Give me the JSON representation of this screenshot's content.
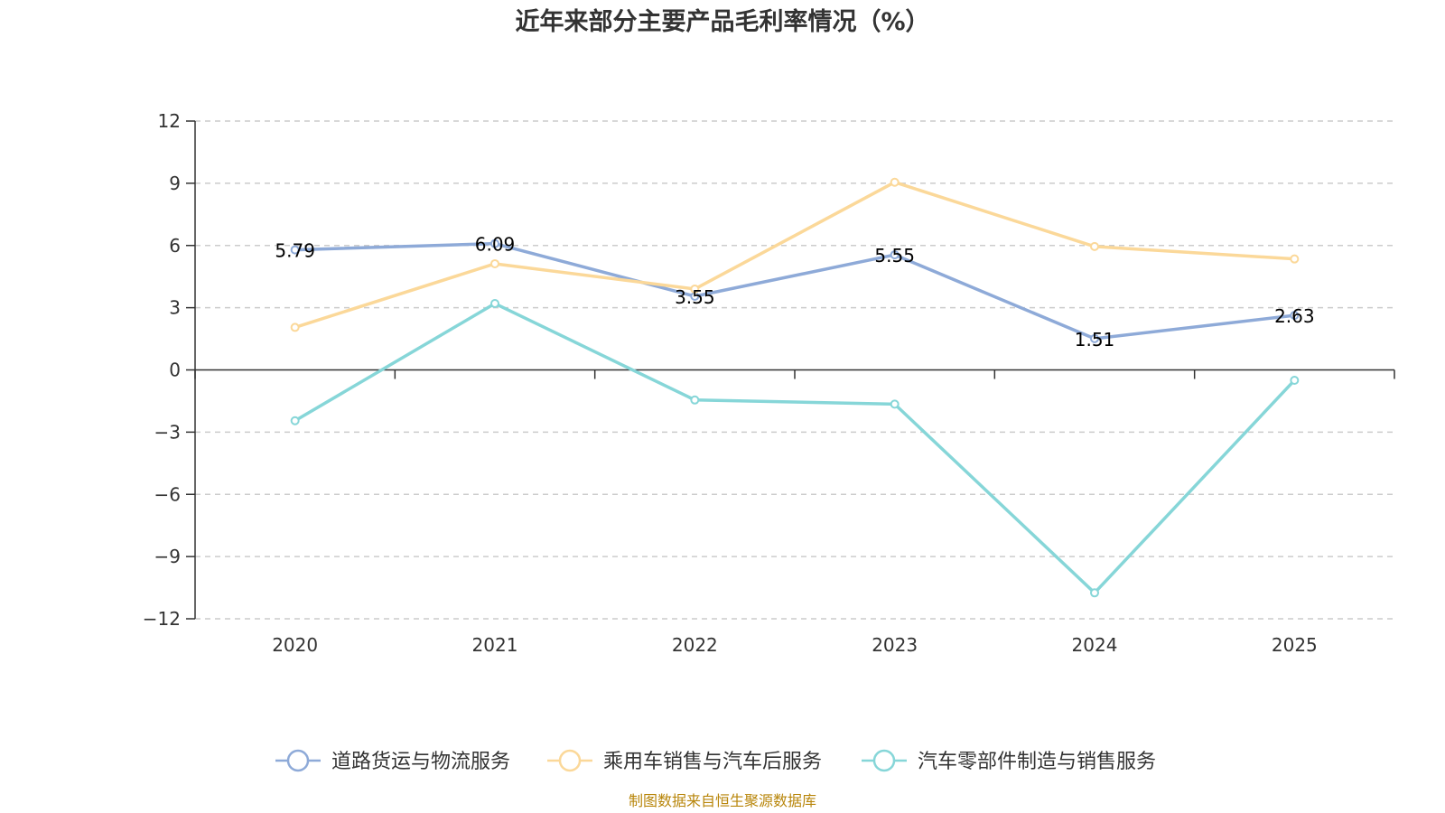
{
  "chart_data": {
    "type": "line",
    "title": "近年来部分主要产品毛利率情况（%）",
    "categories": [
      "2020",
      "2021",
      "2022",
      "2023",
      "2024",
      "2025"
    ],
    "ylim": [
      -12,
      12
    ],
    "yticks": [
      12,
      9,
      6,
      3,
      0,
      -3,
      -6,
      -9,
      -12
    ],
    "ytick_labels": [
      "12",
      "9",
      "6",
      "3",
      "0",
      "−3",
      "−6",
      "−9",
      "−12"
    ],
    "grid": true,
    "legend_position": "bottom",
    "series": [
      {
        "name": "道路货运与物流服务",
        "color": "#8eaad8",
        "values": [
          5.79,
          6.09,
          3.55,
          5.55,
          1.51,
          2.63
        ],
        "labels": [
          "5.79",
          "6.09",
          "3.55",
          "5.55",
          "1.51",
          "2.63"
        ]
      },
      {
        "name": "乘用车销售与汽车后服务",
        "color": "#fbd899",
        "values": [
          2.05,
          5.12,
          3.9,
          9.05,
          5.95,
          5.35
        ]
      },
      {
        "name": "汽车零部件制造与销售服务",
        "color": "#86d6d8",
        "values": [
          -2.45,
          3.2,
          -1.45,
          -1.65,
          -10.75,
          -0.5
        ]
      }
    ],
    "source": "制图数据来自恒生聚源数据库"
  }
}
